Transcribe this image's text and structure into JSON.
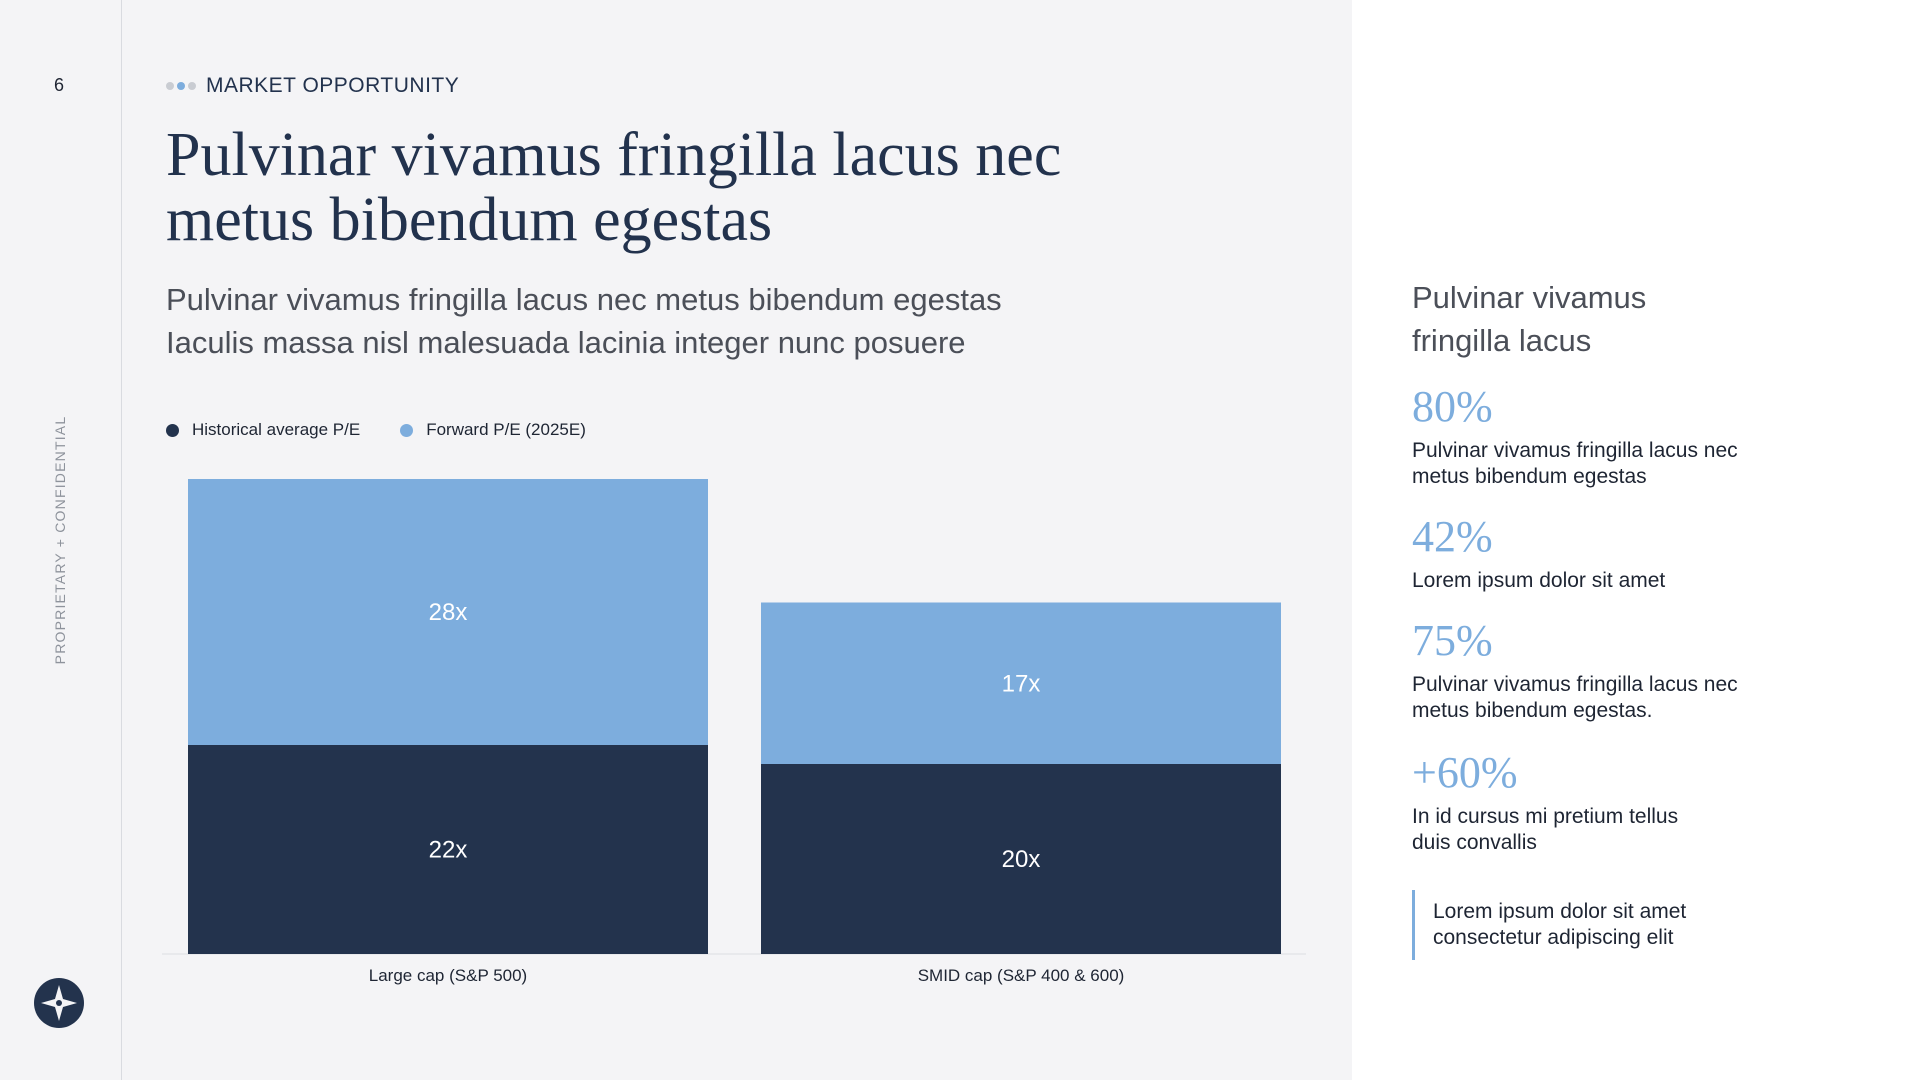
{
  "page_number": "6",
  "confidential_label": "PROPRIETARY + CONFIDENTIAL",
  "eyebrow": "MARKET OPPORTUNITY",
  "title_line1": "Pulvinar vivamus fringilla lacus nec",
  "title_line2": "metus bibendum egestas",
  "subtitle_line1": "Pulvinar vivamus fringilla lacus nec metus bibendum egestas",
  "subtitle_line2": "Iaculis massa nisl malesuada lacinia integer nunc posuere",
  "colors": {
    "navy": "#23334d",
    "light_blue": "#7daddd",
    "dot_grey": "#c9ccd2"
  },
  "chart_data": {
    "type": "bar",
    "stacked": true,
    "categories": [
      "Large cap (S&P 500)",
      "SMID cap (S&P 400 & 600)"
    ],
    "series": [
      {
        "name": "Historical average P/E",
        "values": [
          22,
          20
        ],
        "labels": [
          "22x",
          "20x"
        ],
        "color": "#23334d"
      },
      {
        "name": "Forward P/E (2025E)",
        "values": [
          28,
          17
        ],
        "labels": [
          "28x",
          "17x"
        ],
        "color": "#7daddd"
      }
    ],
    "title": "",
    "xlabel": "",
    "ylabel": "",
    "legend": "top-left"
  },
  "sidebar": {
    "heading_line1": "Pulvinar vivamus",
    "heading_line2": "fringilla lacus",
    "stats": [
      {
        "value": "80%",
        "text_line1": "Pulvinar vivamus fringilla lacus nec",
        "text_line2": "metus bibendum egestas"
      },
      {
        "value": "42%",
        "text_line1": "Lorem ipsum dolor sit amet",
        "text_line2": ""
      },
      {
        "value": "75%",
        "text_line1": "Pulvinar vivamus fringilla lacus nec",
        "text_line2": "metus bibendum egestas."
      },
      {
        "value": "+60%",
        "text_line1": "In id cursus mi pretium tellus",
        "text_line2": "duis convallis"
      }
    ],
    "quote_line1": "Lorem ipsum dolor sit amet",
    "quote_line2": "consectetur adipiscing elit"
  }
}
